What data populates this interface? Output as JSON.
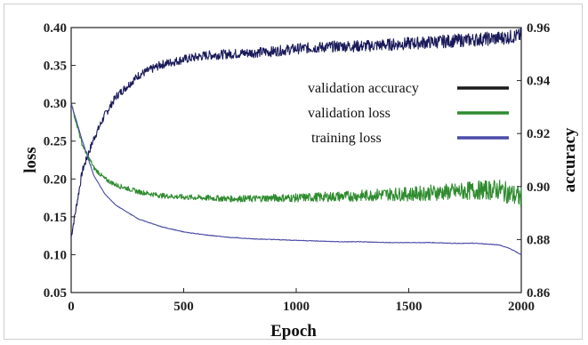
{
  "chart_data": {
    "type": "line",
    "xlabel": "Epoch",
    "ylabel_left": "loss",
    "ylabel_right": "accuracy",
    "xlim": [
      0,
      2000
    ],
    "ylim_left": [
      0.05,
      0.4
    ],
    "ylim_right": [
      0.86,
      0.96
    ],
    "x_ticks": [
      "0",
      "500",
      "1000",
      "1500",
      "2000"
    ],
    "y_left_ticks": [
      "0.40",
      "0.35",
      "0.30",
      "0.25",
      "0.20",
      "0.15",
      "0.10",
      "0.05"
    ],
    "y_right_ticks": [
      "0.96",
      "0.94",
      "0.92",
      "0.90",
      "0.88",
      "0.86"
    ],
    "legend_position": "upper-right",
    "grid": false,
    "series": [
      {
        "name": "validation accuracy",
        "axis": "right",
        "color": "#1a1a5a",
        "x": [
          0,
          50,
          100,
          150,
          200,
          300,
          400,
          500,
          600,
          700,
          800,
          900,
          1000,
          1100,
          1200,
          1300,
          1400,
          1500,
          1600,
          1700,
          1800,
          1900,
          2000
        ],
        "values": [
          0.881,
          0.906,
          0.918,
          0.927,
          0.934,
          0.942,
          0.946,
          0.948,
          0.9495,
          0.95,
          0.9505,
          0.951,
          0.952,
          0.9525,
          0.953,
          0.953,
          0.9535,
          0.954,
          0.9545,
          0.955,
          0.9555,
          0.956,
          0.957
        ]
      },
      {
        "name": "validation loss",
        "axis": "left",
        "color": "#2e8b2e",
        "x": [
          0,
          50,
          100,
          150,
          200,
          300,
          400,
          500,
          600,
          700,
          800,
          900,
          1000,
          1100,
          1200,
          1300,
          1400,
          1500,
          1600,
          1700,
          1800,
          1900,
          2000
        ],
        "values": [
          0.3,
          0.245,
          0.215,
          0.2,
          0.192,
          0.183,
          0.178,
          0.176,
          0.175,
          0.174,
          0.174,
          0.175,
          0.175,
          0.176,
          0.177,
          0.178,
          0.18,
          0.18,
          0.182,
          0.183,
          0.185,
          0.186,
          0.175
        ]
      },
      {
        "name": "training loss",
        "axis": "left",
        "color": "#4a4aa8",
        "x": [
          0,
          50,
          100,
          150,
          200,
          300,
          400,
          500,
          600,
          700,
          800,
          900,
          1000,
          1100,
          1200,
          1300,
          1400,
          1500,
          1600,
          1700,
          1800,
          1900,
          1950,
          2000
        ],
        "values": [
          0.3,
          0.25,
          0.205,
          0.18,
          0.165,
          0.147,
          0.137,
          0.13,
          0.126,
          0.123,
          0.121,
          0.12,
          0.119,
          0.118,
          0.117,
          0.117,
          0.116,
          0.116,
          0.116,
          0.115,
          0.115,
          0.113,
          0.108,
          0.1
        ]
      }
    ]
  }
}
